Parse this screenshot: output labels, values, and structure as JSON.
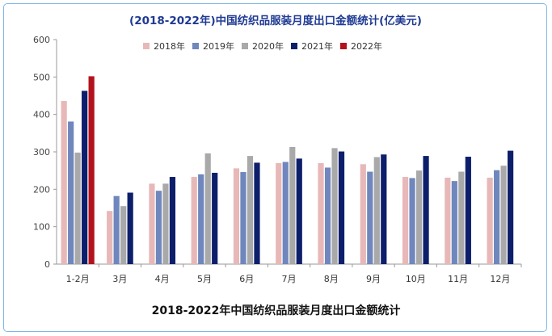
{
  "caption": "2018-2022年中国纺织品服装月度出口金额统计",
  "chart_data": {
    "type": "bar",
    "title": "(2018-2022年)中国纺织品服装月度出口金额统计(亿美元)",
    "xlabel": "",
    "ylabel": "",
    "ylim": [
      0,
      600
    ],
    "yticks": [
      0,
      100,
      200,
      300,
      400,
      500,
      600
    ],
    "grid": false,
    "legend_position": "top-center",
    "categories": [
      "1-2月",
      "3月",
      "4月",
      "5月",
      "6月",
      "7月",
      "8月",
      "9月",
      "10月",
      "11月",
      "12月"
    ],
    "series": [
      {
        "name": "2018年",
        "color": "#e8b8b8",
        "values": [
          436,
          142,
          215,
          233,
          256,
          270,
          270,
          267,
          233,
          231,
          231
        ]
      },
      {
        "name": "2019年",
        "color": "#6f87bd",
        "values": [
          381,
          182,
          196,
          240,
          246,
          273,
          258,
          247,
          230,
          222,
          251
        ]
      },
      {
        "name": "2020年",
        "color": "#a9a9a9",
        "values": [
          298,
          155,
          215,
          296,
          289,
          313,
          310,
          286,
          250,
          247,
          263
        ]
      },
      {
        "name": "2021年",
        "color": "#0d1f6b",
        "values": [
          463,
          191,
          233,
          244,
          271,
          282,
          301,
          293,
          289,
          287,
          303
        ]
      },
      {
        "name": "2022年",
        "color": "#b3121c",
        "values": [
          502,
          null,
          null,
          null,
          null,
          null,
          null,
          null,
          null,
          null,
          null
        ]
      }
    ]
  }
}
